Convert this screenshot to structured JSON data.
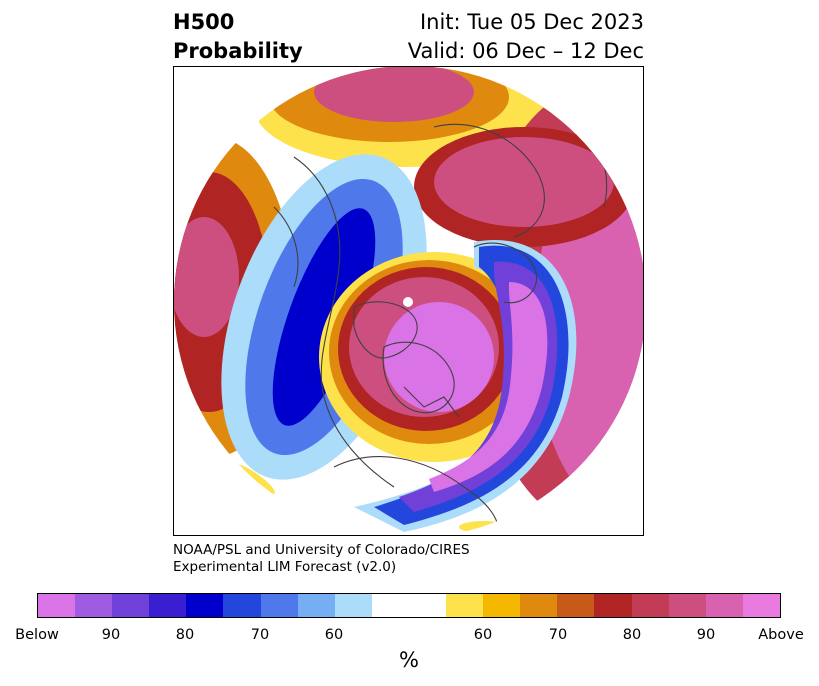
{
  "title": {
    "left_line1": "H500",
    "left_line2": "Probability",
    "right_line1": "Init: Tue 05 Dec 2023",
    "right_line2": "Valid: 06 Dec – 12 Dec"
  },
  "credit": {
    "line1": "NOAA/PSL and University of Colorado/CIRES",
    "line2": "Experimental LIM Forecast (v2.0)"
  },
  "colorbar": {
    "colors": [
      "#d973e6",
      "#a05ce0",
      "#7040d8",
      "#3a1fd0",
      "#0000cc",
      "#2346dc",
      "#4f79ea",
      "#75aef2",
      "#abdcfa",
      "#ffffff",
      "#ffffff",
      "#fde24b",
      "#f5b800",
      "#e0890f",
      "#c85a18",
      "#b02424",
      "#c23c56",
      "#cc4f80",
      "#d962b0",
      "#e87ae0"
    ],
    "ticks": [
      "Below",
      "90",
      "80",
      "70",
      "60",
      "60",
      "70",
      "80",
      "90",
      "Above"
    ],
    "unit": "%"
  },
  "palette": {
    "below_strong": "#0000cc",
    "below_weak": "#abdcfa",
    "above_strong": "#cc4f80",
    "above_weak": "#fde24b",
    "coastline": "#404040"
  }
}
